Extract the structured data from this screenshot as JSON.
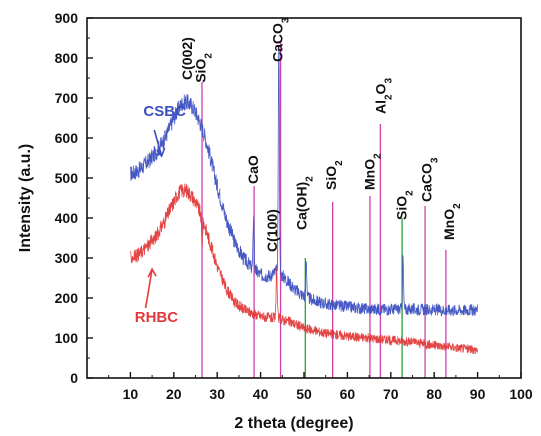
{
  "chart_data": {
    "type": "line",
    "title": "",
    "xlabel": "2 theta (degree)",
    "ylabel": "Intensity (a.u.)",
    "xlim": [
      0,
      100
    ],
    "ylim": [
      0,
      900
    ],
    "xticks": [
      10,
      20,
      30,
      40,
      50,
      60,
      70,
      80,
      90,
      100
    ],
    "yticks": [
      0,
      100,
      200,
      300,
      400,
      500,
      600,
      700,
      800,
      900
    ],
    "grid": false,
    "series": [
      {
        "name": "CSBC",
        "color": "#3b4fc0",
        "x": [
          10,
          12,
          14,
          16,
          18,
          20,
          21,
          22,
          23,
          24,
          25,
          26,
          27,
          28,
          30,
          32,
          34,
          36,
          38,
          40,
          42,
          44,
          46,
          48,
          50,
          52,
          55,
          60,
          65,
          70,
          75,
          80,
          85,
          90
        ],
        "y": [
          510,
          520,
          540,
          565,
          600,
          650,
          672,
          688,
          690,
          682,
          665,
          640,
          610,
          570,
          480,
          400,
          340,
          300,
          275,
          258,
          255,
          268,
          245,
          220,
          205,
          195,
          185,
          178,
          172,
          172,
          172,
          170,
          170,
          170
        ]
      },
      {
        "name": "RHBC",
        "color": "#e23a3a",
        "x": [
          10,
          12,
          14,
          16,
          18,
          20,
          21,
          22,
          23,
          24,
          25,
          26,
          27,
          28,
          30,
          32,
          34,
          36,
          38,
          40,
          42,
          44,
          46,
          48,
          50,
          55,
          60,
          65,
          70,
          75,
          80,
          85,
          90
        ],
        "y": [
          300,
          310,
          330,
          355,
          395,
          440,
          462,
          470,
          468,
          458,
          440,
          415,
          385,
          350,
          280,
          225,
          190,
          172,
          162,
          155,
          150,
          150,
          143,
          135,
          125,
          112,
          105,
          100,
          95,
          90,
          82,
          76,
          70
        ]
      }
    ],
    "sharp_peaks": [
      {
        "series": "CSBC",
        "x": 38.4,
        "y": 410
      },
      {
        "series": "CSBC",
        "x": 44.2,
        "y": 845
      },
      {
        "series": "CSBC",
        "x": 50.5,
        "y": 300
      },
      {
        "series": "CSBC",
        "x": 72.8,
        "y": 300
      },
      {
        "series": "RHBC",
        "x": 26.5,
        "y": 340
      },
      {
        "series": "RHBC",
        "x": 43.7,
        "y": 270
      }
    ],
    "reference_lines": [
      {
        "x": 26.5,
        "top": 740,
        "color": "#cf3fae"
      },
      {
        "x": 38.5,
        "top": 480,
        "color": "#cf3fae"
      },
      {
        "x": 44.6,
        "top": 840,
        "color": "#cf3fae"
      },
      {
        "x": 50.3,
        "top": 300,
        "color": "#2aa13a"
      },
      {
        "x": 56.6,
        "top": 440,
        "color": "#cf3fae"
      },
      {
        "x": 65.2,
        "top": 455,
        "color": "#cf3fae"
      },
      {
        "x": 67.6,
        "top": 635,
        "color": "#cf3fae"
      },
      {
        "x": 72.6,
        "top": 400,
        "color": "#2aa13a"
      },
      {
        "x": 77.9,
        "top": 430,
        "color": "#cf3fae"
      },
      {
        "x": 82.7,
        "top": 320,
        "color": "#cf3fae"
      }
    ],
    "annotations": [
      {
        "label": "C(002)",
        "x": 24.2,
        "y": 745
      },
      {
        "label": "SiO2",
        "x": 27.3,
        "y": 738
      },
      {
        "label": "CaCO3",
        "x": 45.0,
        "y": 790
      },
      {
        "label": "CaO",
        "x": 39.4,
        "y": 485
      },
      {
        "label": "C(100)",
        "x": 43.8,
        "y": 315
      },
      {
        "label": "Ca(OH)2",
        "x": 50.6,
        "y": 370
      },
      {
        "label": "SiO2",
        "x": 57.4,
        "y": 470
      },
      {
        "label": "MnO2",
        "x": 66.2,
        "y": 470
      },
      {
        "label": "Al2O3",
        "x": 68.8,
        "y": 660
      },
      {
        "label": "SiO2",
        "x": 73.6,
        "y": 395
      },
      {
        "label": "CaCO3",
        "x": 79.4,
        "y": 440
      },
      {
        "label": "MnO2",
        "x": 84.6,
        "y": 345
      }
    ]
  }
}
